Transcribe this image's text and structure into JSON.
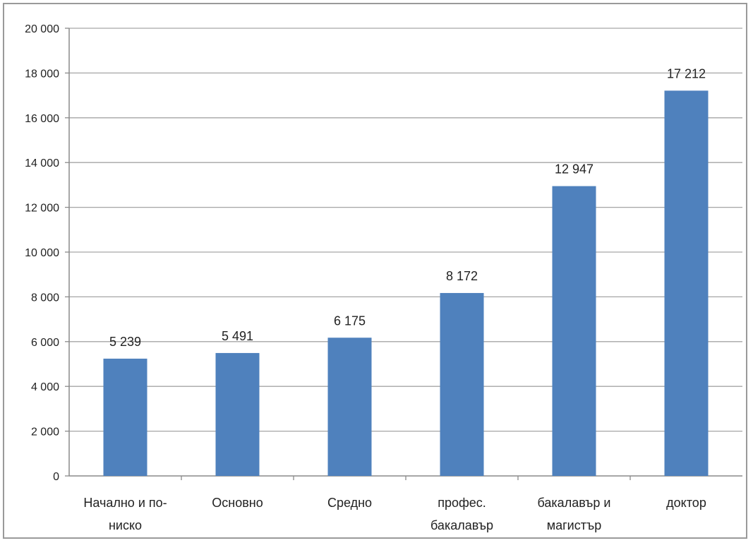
{
  "chart_data": {
    "type": "bar",
    "title": "",
    "xlabel": "",
    "ylabel": "",
    "categories": [
      [
        "Начално и по-",
        "ниско"
      ],
      [
        "Основно"
      ],
      [
        "Средно"
      ],
      [
        "профес.",
        "бакалавър"
      ],
      [
        "бакалавър и",
        "магистър"
      ],
      [
        "доктор"
      ]
    ],
    "values": [
      5239,
      5491,
      6175,
      8172,
      12947,
      17212
    ],
    "value_labels": [
      "5 239",
      "5 491",
      "6 175",
      "8 172",
      "12 947",
      "17 212"
    ],
    "ylim": [
      0,
      20000
    ],
    "yticks": [
      0,
      2000,
      4000,
      6000,
      8000,
      10000,
      12000,
      14000,
      16000,
      18000,
      20000
    ],
    "ytick_labels": [
      "0",
      "2 000",
      "4 000",
      "6 000",
      "8 000",
      "10 000",
      "12 000",
      "14 000",
      "16 000",
      "18 000",
      "20 000"
    ],
    "grid": true,
    "legend": false,
    "bar_color": "#4f81bd",
    "grid_color": "#a6a6a6"
  }
}
